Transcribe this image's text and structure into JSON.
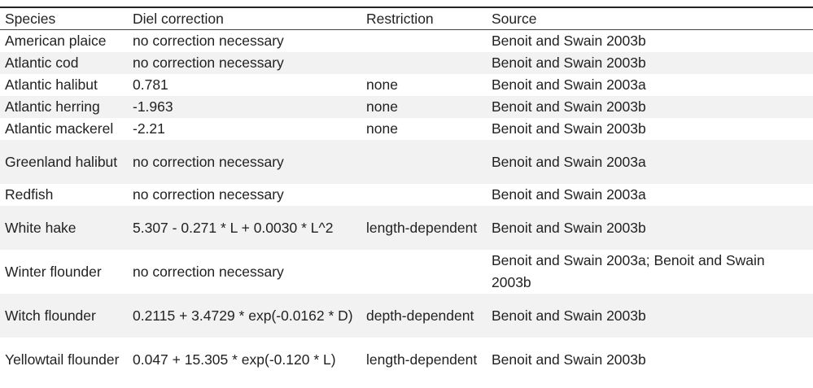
{
  "table": {
    "headers": [
      "Species",
      "Diel correction",
      "Restriction",
      "Source"
    ],
    "rows": [
      [
        "American plaice",
        "no correction necessary",
        "",
        "Benoit and Swain 2003b"
      ],
      [
        "Atlantic cod",
        "no correction necessary",
        "",
        "Benoit and Swain 2003b"
      ],
      [
        "Atlantic halibut",
        "0.781",
        "none",
        "Benoit and Swain 2003a"
      ],
      [
        "Atlantic herring",
        "-1.963",
        "none",
        "Benoit and Swain 2003b"
      ],
      [
        "Atlantic mackerel",
        "-2.21",
        "none",
        "Benoit and Swain 2003b"
      ],
      [
        "Greenland halibut",
        "no correction necessary",
        "",
        "Benoit and Swain 2003a"
      ],
      [
        "Redfish",
        "no correction necessary",
        "",
        "Benoit and Swain 2003a"
      ],
      [
        "White hake",
        "5.307 - 0.271 * L + 0.0030 * L^2",
        "length-dependent",
        "Benoit and Swain 2003b"
      ],
      [
        "Winter flounder",
        "no correction necessary",
        "",
        "Benoit and Swain 2003a; Benoit and Swain 2003b"
      ],
      [
        "Witch flounder",
        "0.2115 + 3.4729 * exp(-0.0162 * D)",
        "depth-dependent",
        "Benoit and Swain 2003b"
      ],
      [
        "Yellowtail flounder",
        "0.047 + 15.305 * exp(-0.120 * L)",
        "length-dependent",
        "Benoit and Swain 2003b"
      ]
    ]
  }
}
